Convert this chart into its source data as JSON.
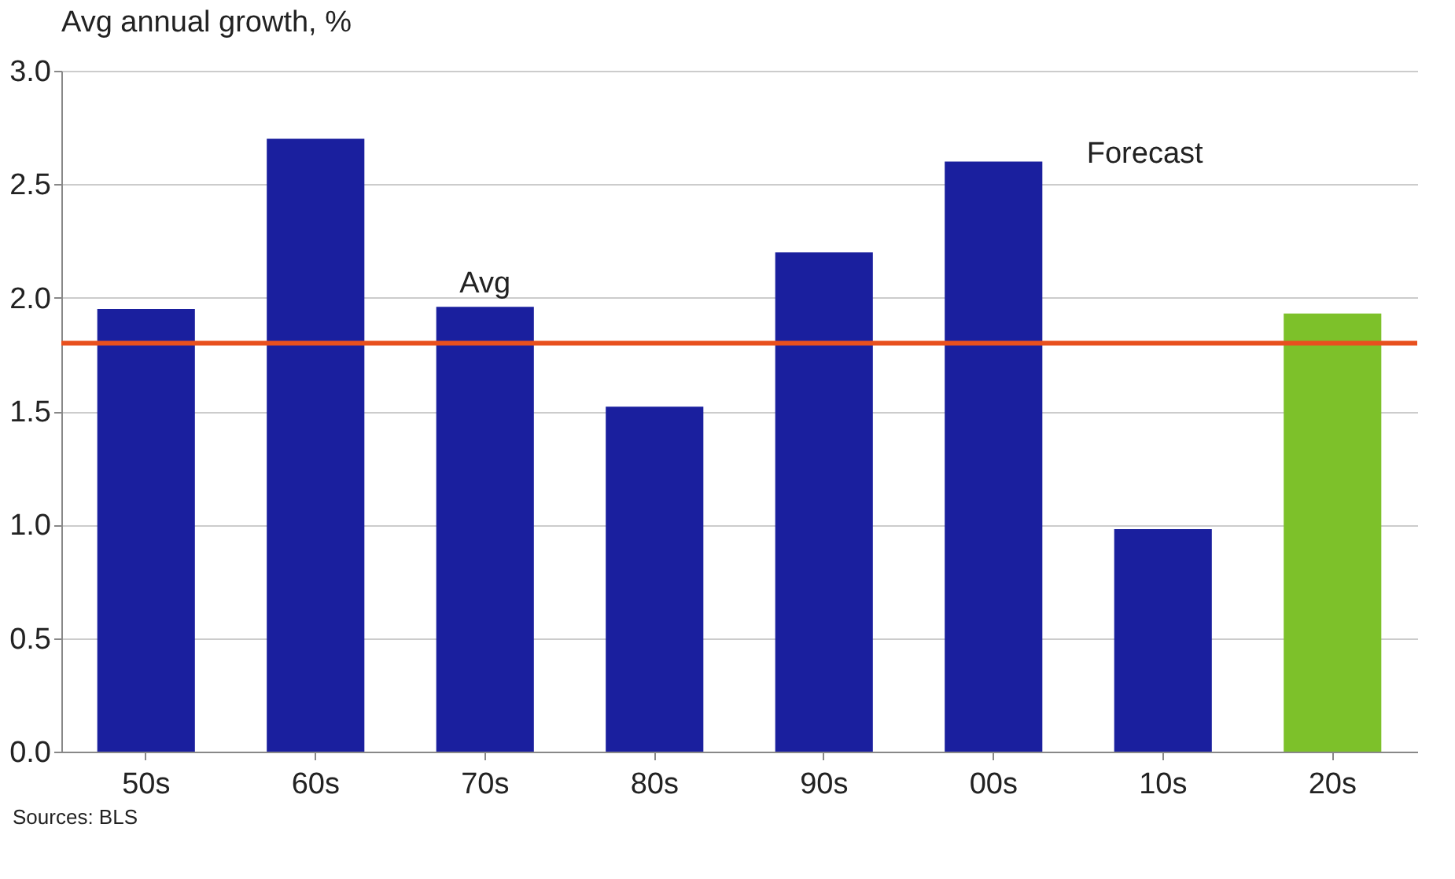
{
  "chart_data": {
    "type": "bar",
    "subtitle": "Avg annual growth, %",
    "categories": [
      "50s",
      "60s",
      "70s",
      "80s",
      "90s",
      "00s",
      "10s",
      "20s"
    ],
    "values": [
      1.95,
      2.7,
      1.96,
      1.52,
      2.2,
      2.6,
      0.98,
      1.93
    ],
    "colors": [
      "#1a1f9e",
      "#1a1f9e",
      "#1a1f9e",
      "#1a1f9e",
      "#1a1f9e",
      "#1a1f9e",
      "#1a1f9e",
      "#7dc12a"
    ],
    "ylim": [
      0,
      3
    ],
    "yticks": [
      {
        "value": 0,
        "label": "0.0"
      },
      {
        "value": 0.5,
        "label": "0.5"
      },
      {
        "value": 1,
        "label": "1.0"
      },
      {
        "value": 1.5,
        "label": "1.5"
      },
      {
        "value": 2,
        "label": "2.0"
      },
      {
        "value": 2.5,
        "label": "2.5"
      },
      {
        "value": 3,
        "label": "3.0"
      }
    ],
    "grid": "y",
    "ref_lines": [
      {
        "axis": "y",
        "value": 1.8,
        "label": "Avg",
        "color": "#e8501e"
      }
    ],
    "annotations": [
      "Forecast",
      "Sources: BLS"
    ]
  }
}
